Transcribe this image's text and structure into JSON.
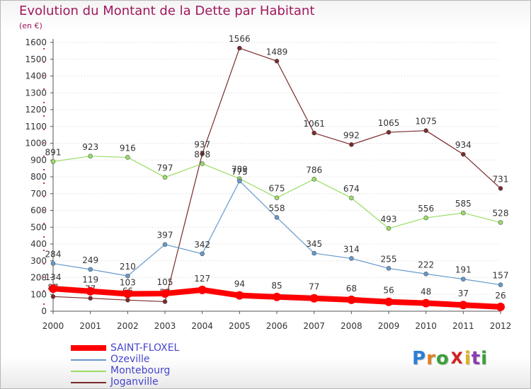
{
  "title": "Evolution du Montant de la Dette par Habitant",
  "unit": "(en €)",
  "colors": {
    "title": "#a0185e",
    "axis": "#555555",
    "grid": "#d0d0d0",
    "legend_text": "#4545cc"
  },
  "logo": {
    "text": "ProXiti",
    "letters": [
      {
        "ch": "P",
        "color": "#2b7fd4"
      },
      {
        "ch": "r",
        "color": "#e08020"
      },
      {
        "ch": "o",
        "color": "#3aa03a"
      },
      {
        "ch": "X",
        "color": "#d42020"
      },
      {
        "ch": "i",
        "color": "#e0b020"
      },
      {
        "ch": "t",
        "color": "#8c3cb4"
      },
      {
        "ch": "i",
        "color": "#3aa03a"
      }
    ]
  },
  "chart_data": {
    "type": "line",
    "title": "Evolution du Montant de la Dette par Habitant",
    "subtitle": "(en €)",
    "x": [
      2000,
      2001,
      2002,
      2003,
      2004,
      2005,
      2006,
      2007,
      2008,
      2009,
      2010,
      2011,
      2012
    ],
    "ylim": [
      0,
      1600
    ],
    "yticks": [
      0,
      100,
      200,
      300,
      400,
      500,
      600,
      700,
      800,
      900,
      1000,
      1100,
      1200,
      1300,
      1400,
      1500,
      1600
    ],
    "grid": "horizontal dotted",
    "legend_position": "bottom-left",
    "series": [
      {
        "name": "SAINT-FLOXEL",
        "color": "#ff0000",
        "line_width": "thick",
        "values": [
          134,
          119,
          103,
          105,
          127,
          94,
          85,
          77,
          68,
          56,
          48,
          37,
          26
        ]
      },
      {
        "name": "Ozeville",
        "color": "#6699cc",
        "line_width": "thin",
        "values": [
          284,
          249,
          210,
          397,
          342,
          775,
          558,
          345,
          314,
          255,
          222,
          191,
          157
        ]
      },
      {
        "name": "Montebourg",
        "color": "#99dd66",
        "line_width": "thin",
        "values": [
          891,
          923,
          916,
          797,
          878,
          789,
          675,
          786,
          674,
          493,
          556,
          585,
          528
        ]
      },
      {
        "name": "Joganville",
        "color": "#7a2a2a",
        "line_width": "thin",
        "values": [
          87,
          77,
          66,
          57,
          937,
          1566,
          1489,
          1061,
          992,
          1065,
          1075,
          934,
          731
        ]
      }
    ]
  }
}
